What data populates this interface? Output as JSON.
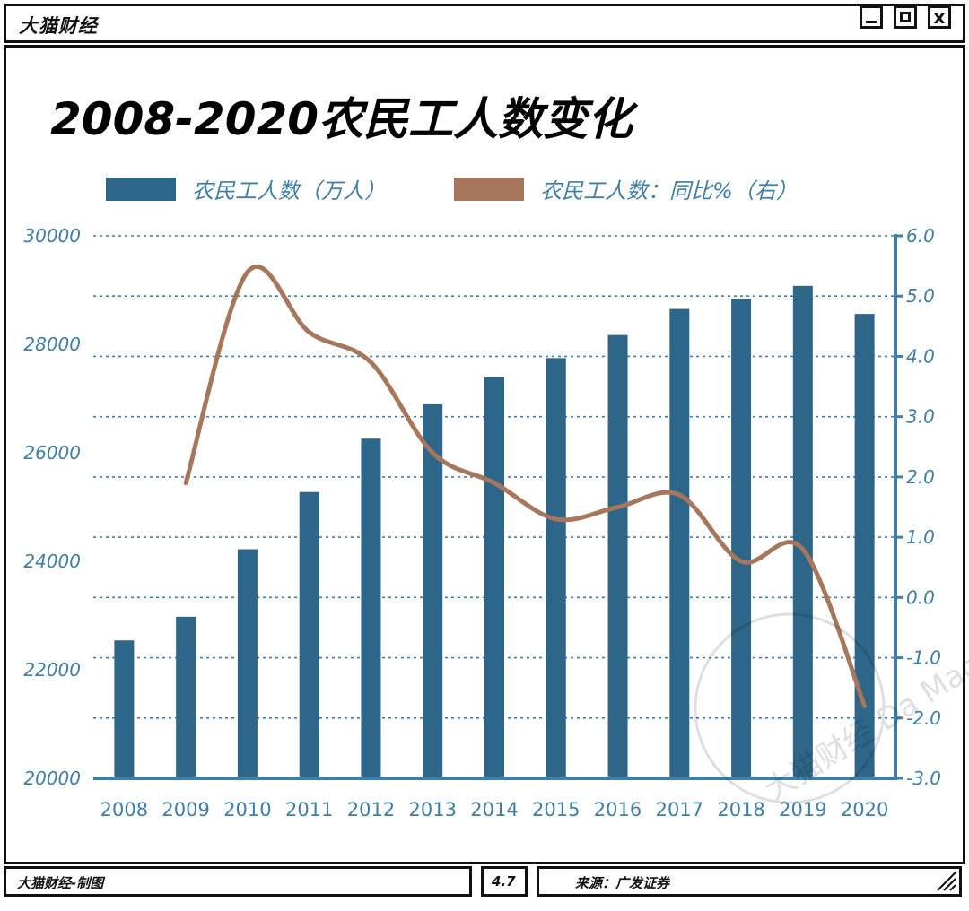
{
  "window": {
    "title": "大猫财经",
    "buttons": {
      "min": "_",
      "max": "□",
      "close": "x"
    }
  },
  "footer": {
    "left": "大猫财经-制图",
    "mid": "4.7",
    "right": "来源：广发证券"
  },
  "watermark": "大猫财经 Da Mao Money",
  "colors": {
    "bar": "#2e6689",
    "line": "#a6775c",
    "axis": "#3f7ea5",
    "grid": "#3f7ea5"
  },
  "chart_data": {
    "type": "bar",
    "title": "2008-2020农民工人数变化",
    "categories": [
      "2008",
      "2009",
      "2010",
      "2011",
      "2012",
      "2013",
      "2014",
      "2015",
      "2016",
      "2017",
      "2018",
      "2019",
      "2020"
    ],
    "series": [
      {
        "name": "农民工人数（万人）",
        "type": "bar",
        "axis": "left",
        "values": [
          22542,
          22978,
          24223,
          25278,
          26261,
          26894,
          27395,
          27747,
          28171,
          28652,
          28836,
          29077,
          28560
        ]
      },
      {
        "name": "农民工人数：同比%（右）",
        "type": "line",
        "axis": "right",
        "values": [
          null,
          1.9,
          5.4,
          4.4,
          3.9,
          2.4,
          1.9,
          1.3,
          1.5,
          1.7,
          0.6,
          0.8,
          -1.8
        ]
      }
    ],
    "left_axis": {
      "min": 20000,
      "max": 30000,
      "ticks": [
        "20000",
        "22000",
        "24000",
        "26000",
        "28000",
        "30000"
      ]
    },
    "right_axis": {
      "min": -3.0,
      "max": 6.0,
      "ticks": [
        "-3.0",
        "-2.0",
        "-1.0",
        "0.0",
        "1.0",
        "2.0",
        "3.0",
        "4.0",
        "5.0",
        "6.0"
      ]
    },
    "grid": true,
    "legend": "top"
  }
}
